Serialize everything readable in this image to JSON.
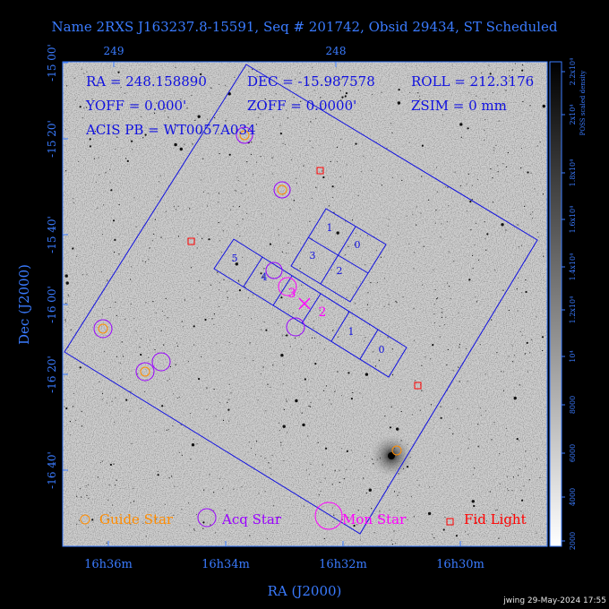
{
  "header": {
    "title": "Name 2RXS J163237.8-15591, Seq # 201742, Obsid 29434, ST Scheduled"
  },
  "info": {
    "ra": "RA = 248.158890",
    "dec": "DEC = -15.987578",
    "roll": "ROLL = 212.3176",
    "yoff": "YOFF = 0.000'",
    "zoff": "ZOFF = 0.0000'",
    "zsim": "ZSIM = 0 mm",
    "acis": "ACIS PB = WT0057A034"
  },
  "axes": {
    "xlabel": "RA (J2000)",
    "ylabel": "Dec (J2000)",
    "top_ticks": [
      "249",
      "248"
    ],
    "bottom_ticks": [
      "16h36m",
      "16h34m",
      "16h32m",
      "16h30m"
    ],
    "left_ticks": [
      "-15 00'",
      "-15 20'",
      "-15 40'",
      "-16 00'",
      "-16 20'",
      "-16 40'"
    ]
  },
  "colorbar": {
    "label": "POSS scaled density",
    "ticks": [
      "2000",
      "4000",
      "6000",
      "8000",
      "10⁴",
      "1.2x10⁴",
      "1.4x10⁴",
      "1.6x10⁴",
      "1.8x10⁴",
      "2x10⁴",
      "2.2x10⁴"
    ]
  },
  "chips": {
    "i": [
      "0",
      "1",
      "2",
      "3"
    ],
    "s": [
      "0",
      "1",
      "2",
      "3",
      "4",
      "5"
    ]
  },
  "markers": {
    "mon_labels": [
      "3",
      "2"
    ]
  },
  "legend": {
    "guide": "Guide Star",
    "acq": "Acq Star",
    "mon": "Mon Star",
    "fid": "Fid Light",
    "colors": {
      "guide": "#ff8c00",
      "acq": "#9900ff",
      "mon": "#ff00ff",
      "fid": "#ff0000"
    }
  },
  "footer": {
    "stamp": "jwing 29-May-2024 17:55"
  }
}
